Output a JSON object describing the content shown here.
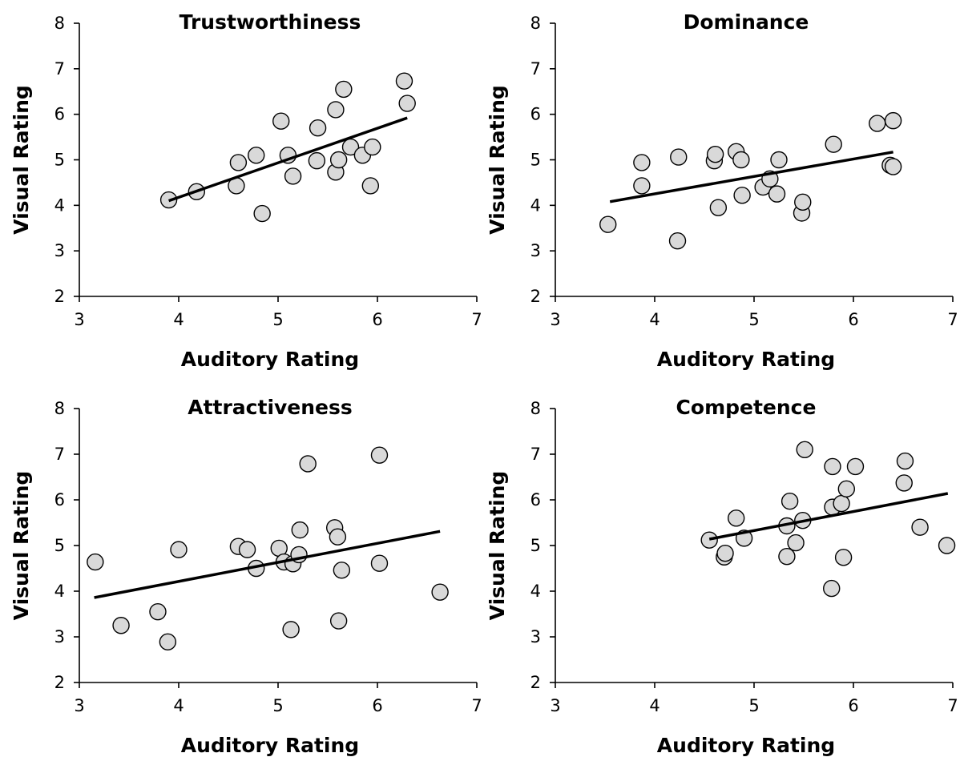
{
  "chart_data": [
    {
      "type": "scatter",
      "title": "Trustworthiness",
      "xlabel": "Auditory Rating",
      "ylabel": "Visual Rating",
      "xlim": [
        3,
        7
      ],
      "ylim": [
        2,
        8
      ],
      "xticks": [
        "3",
        "4",
        "5",
        "6",
        "7"
      ],
      "yticks": [
        "2",
        "3",
        "4",
        "5",
        "6",
        "7",
        "8"
      ],
      "grid": false,
      "points": [
        [
          3.9,
          4.12
        ],
        [
          4.18,
          4.3
        ],
        [
          4.58,
          4.43
        ],
        [
          4.6,
          4.94
        ],
        [
          4.78,
          5.1
        ],
        [
          4.84,
          3.82
        ],
        [
          5.03,
          5.85
        ],
        [
          5.1,
          5.1
        ],
        [
          5.15,
          4.64
        ],
        [
          5.39,
          4.98
        ],
        [
          5.4,
          5.7
        ],
        [
          5.58,
          4.73
        ],
        [
          5.58,
          6.1
        ],
        [
          5.61,
          5.0
        ],
        [
          5.66,
          6.55
        ],
        [
          5.73,
          5.28
        ],
        [
          5.85,
          5.1
        ],
        [
          5.93,
          4.43
        ],
        [
          5.95,
          5.28
        ],
        [
          6.27,
          6.73
        ],
        [
          6.3,
          6.24
        ]
      ],
      "trendline": [
        [
          3.9,
          4.1
        ],
        [
          6.3,
          5.92
        ]
      ]
    },
    {
      "type": "scatter",
      "title": "Dominance",
      "xlabel": "Auditory Rating",
      "ylabel": "Visual Rating",
      "xlim": [
        3,
        7
      ],
      "ylim": [
        2,
        8
      ],
      "xticks": [
        "3",
        "4",
        "5",
        "6",
        "7"
      ],
      "yticks": [
        "2",
        "3",
        "4",
        "5",
        "6",
        "7",
        "8"
      ],
      "grid": false,
      "points": [
        [
          3.53,
          3.58
        ],
        [
          3.87,
          4.43
        ],
        [
          3.87,
          4.94
        ],
        [
          4.23,
          3.22
        ],
        [
          4.24,
          5.06
        ],
        [
          4.6,
          4.98
        ],
        [
          4.61,
          5.12
        ],
        [
          4.64,
          3.95
        ],
        [
          4.82,
          5.18
        ],
        [
          4.87,
          5.0
        ],
        [
          4.88,
          4.22
        ],
        [
          5.09,
          4.4
        ],
        [
          5.16,
          4.58
        ],
        [
          5.23,
          4.25
        ],
        [
          5.25,
          5.0
        ],
        [
          5.48,
          3.83
        ],
        [
          5.49,
          4.07
        ],
        [
          5.8,
          5.34
        ],
        [
          6.24,
          5.8
        ],
        [
          6.37,
          4.88
        ],
        [
          6.4,
          4.85
        ],
        [
          6.4,
          5.86
        ]
      ],
      "trendline": [
        [
          3.55,
          4.08
        ],
        [
          6.4,
          5.17
        ]
      ]
    },
    {
      "type": "scatter",
      "title": "Attractiveness",
      "xlabel": "Auditory Rating",
      "ylabel": "Visual Rating",
      "xlim": [
        3,
        7
      ],
      "ylim": [
        2,
        8
      ],
      "xticks": [
        "3",
        "4",
        "5",
        "6",
        "7"
      ],
      "yticks": [
        "2",
        "3",
        "4",
        "5",
        "6",
        "7",
        "8"
      ],
      "grid": false,
      "points": [
        [
          3.16,
          4.64
        ],
        [
          3.42,
          3.25
        ],
        [
          3.79,
          3.55
        ],
        [
          3.89,
          2.89
        ],
        [
          4.0,
          4.91
        ],
        [
          4.6,
          4.98
        ],
        [
          4.69,
          4.91
        ],
        [
          4.78,
          4.5
        ],
        [
          5.01,
          4.94
        ],
        [
          5.06,
          4.64
        ],
        [
          5.15,
          4.6
        ],
        [
          5.21,
          4.8
        ],
        [
          5.22,
          5.34
        ],
        [
          5.13,
          3.16
        ],
        [
          5.3,
          6.79
        ],
        [
          5.57,
          5.39
        ],
        [
          5.6,
          5.19
        ],
        [
          5.61,
          3.35
        ],
        [
          5.64,
          4.46
        ],
        [
          6.02,
          6.98
        ],
        [
          6.02,
          4.61
        ],
        [
          6.63,
          3.98
        ]
      ],
      "trendline": [
        [
          3.15,
          3.86
        ],
        [
          6.63,
          5.31
        ]
      ]
    },
    {
      "type": "scatter",
      "title": "Competence",
      "xlabel": "Auditory Rating",
      "ylabel": "Visual Rating",
      "xlim": [
        3,
        7
      ],
      "ylim": [
        2,
        8
      ],
      "xticks": [
        "3",
        "4",
        "5",
        "6",
        "7"
      ],
      "yticks": [
        "2",
        "3",
        "4",
        "5",
        "6",
        "7",
        "8"
      ],
      "grid": false,
      "points": [
        [
          4.55,
          5.12
        ],
        [
          4.7,
          4.75
        ],
        [
          4.71,
          4.83
        ],
        [
          4.82,
          5.6
        ],
        [
          4.9,
          5.16
        ],
        [
          5.33,
          4.76
        ],
        [
          5.33,
          5.43
        ],
        [
          5.36,
          5.97
        ],
        [
          5.42,
          5.06
        ],
        [
          5.49,
          5.55
        ],
        [
          5.51,
          7.1
        ],
        [
          5.78,
          4.06
        ],
        [
          5.79,
          5.84
        ],
        [
          5.79,
          6.73
        ],
        [
          5.88,
          5.92
        ],
        [
          5.9,
          4.74
        ],
        [
          5.93,
          6.24
        ],
        [
          6.02,
          6.73
        ],
        [
          6.51,
          6.37
        ],
        [
          6.52,
          6.85
        ],
        [
          6.67,
          5.4
        ],
        [
          6.94,
          5.0
        ]
      ],
      "trendline": [
        [
          4.55,
          5.14
        ],
        [
          6.95,
          6.14
        ]
      ]
    }
  ]
}
